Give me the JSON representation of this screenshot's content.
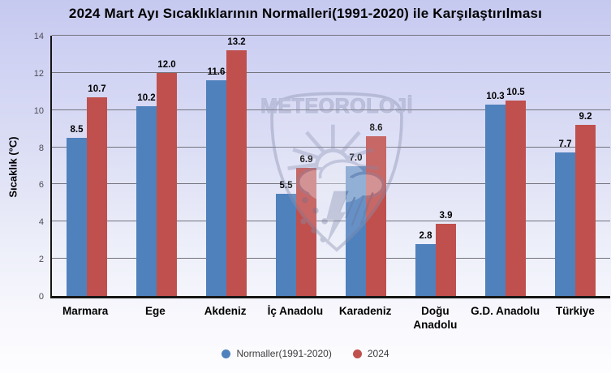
{
  "chart_data": {
    "type": "bar",
    "title": "2024 Mart Ayı Sıcaklıklarının Normalleri(1991-2020) ile Karşılaştırılması",
    "ylabel": "Sıcaklık (°C)",
    "xlabel": "",
    "ylim": [
      0,
      14
    ],
    "yticks": [
      0,
      2,
      4,
      6,
      8,
      10,
      12,
      14
    ],
    "grid": true,
    "legend_position": "bottom",
    "watermark": "METEOROLOJİ",
    "categories": [
      "Marmara",
      "Ege",
      "Akdeniz",
      "İç Anadolu",
      "Karadeniz",
      "Doğu Anadolu",
      "G.D. Anadolu",
      "Türkiye"
    ],
    "series": [
      {
        "name": "Normaller(1991-2020)",
        "color": "#4F81BD",
        "values": [
          8.5,
          10.2,
          11.6,
          5.5,
          7.0,
          2.8,
          10.3,
          7.7
        ],
        "labels": [
          "8.5",
          "10.2",
          "11.6",
          "5.5",
          "7.0",
          "2.8",
          "10.3",
          "7.7"
        ]
      },
      {
        "name": "2024",
        "color": "#C0504D",
        "values": [
          10.7,
          12.0,
          13.2,
          6.9,
          8.6,
          3.9,
          10.5,
          9.2
        ],
        "labels": [
          "10.7",
          "12.0",
          "13.2",
          "6.9",
          "8.6",
          "3.9",
          "10.5",
          "9.2"
        ]
      }
    ]
  }
}
